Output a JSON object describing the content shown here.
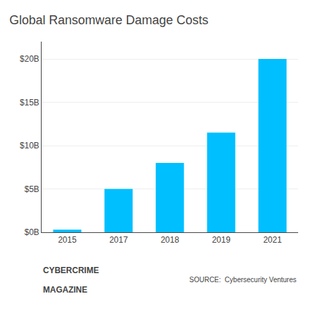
{
  "chart_data": {
    "type": "bar",
    "title": "Global Ransomware Damage Costs",
    "categories": [
      "2015",
      "2017",
      "2018",
      "2019",
      "2021"
    ],
    "values": [
      0.3,
      5,
      8,
      11.5,
      20
    ],
    "color": "#00BFFF",
    "ylim": [
      0,
      22
    ],
    "yticks": [
      {
        "value": 0,
        "label": "$0B"
      },
      {
        "value": 5,
        "label": "$5B"
      },
      {
        "value": 10,
        "label": "$10B"
      },
      {
        "value": 15,
        "label": "$15B"
      },
      {
        "value": 20,
        "label": "$20B"
      }
    ],
    "grid": true,
    "annotations": [
      "CYBERCRIME",
      "MAGAZINE",
      "SOURCE:  Cybersecurity Ventures"
    ]
  }
}
